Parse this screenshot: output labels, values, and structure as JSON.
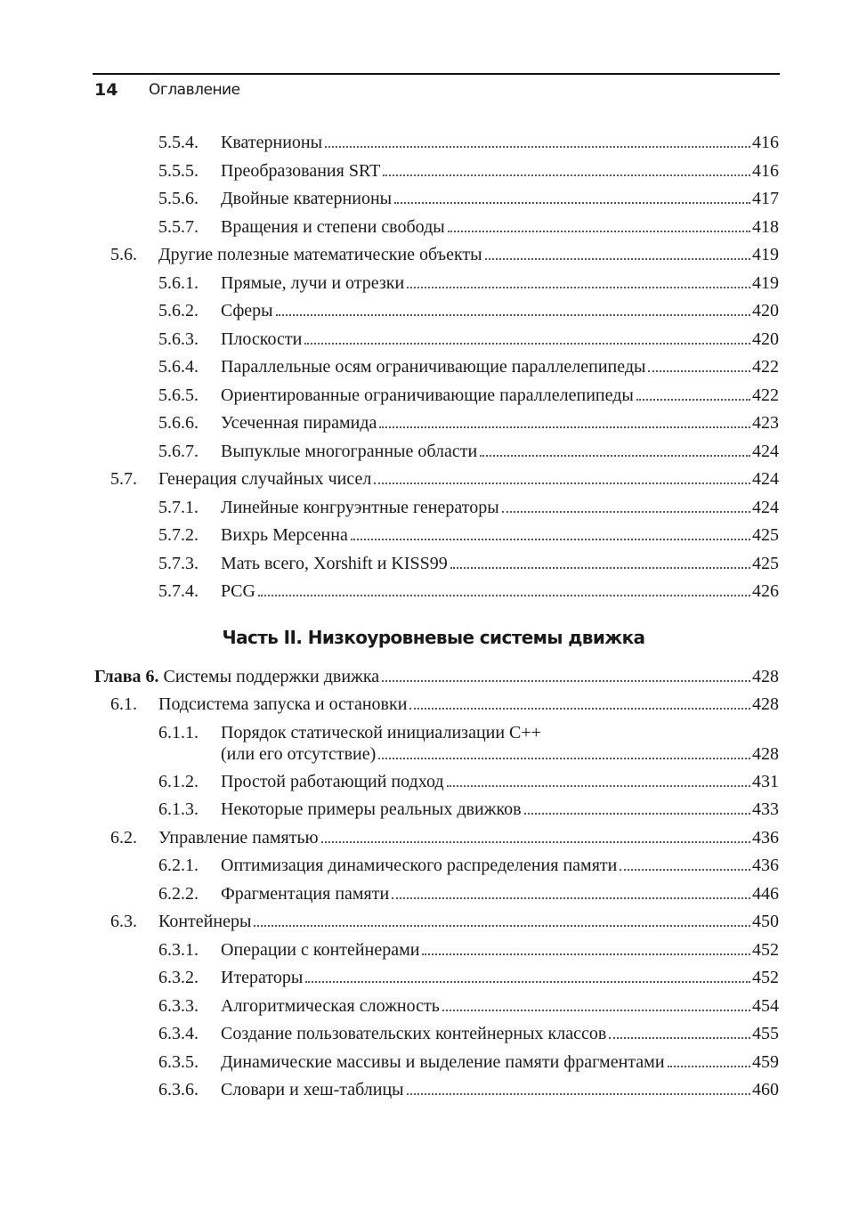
{
  "header": {
    "page_number": "14",
    "running_title": "Оглавление"
  },
  "entries_a": [
    {
      "level": 3,
      "num": "5.5.4.",
      "title": "Кватернионы",
      "page": "416"
    },
    {
      "level": 3,
      "num": "5.5.5.",
      "title": "Преобразования SRT",
      "page": "416"
    },
    {
      "level": 3,
      "num": "5.5.6.",
      "title": "Двойные кватернионы",
      "page": "417"
    },
    {
      "level": 3,
      "num": "5.5.7.",
      "title": "Вращения и степени свободы",
      "page": "418"
    },
    {
      "level": 2,
      "num": "5.6.",
      "title": "Другие полезные математические объекты",
      "page": "419"
    },
    {
      "level": 3,
      "num": "5.6.1.",
      "title": "Прямые, лучи и отрезки",
      "page": "419"
    },
    {
      "level": 3,
      "num": "5.6.2.",
      "title": "Сферы",
      "page": "420"
    },
    {
      "level": 3,
      "num": "5.6.3.",
      "title": "Плоскости",
      "page": "420"
    },
    {
      "level": 3,
      "num": "5.6.4.",
      "title": "Параллельные осям ограничивающие параллелепипеды",
      "page": "422"
    },
    {
      "level": 3,
      "num": "5.6.5.",
      "title": "Ориентированные ограничивающие параллелепипеды",
      "page": "422"
    },
    {
      "level": 3,
      "num": "5.6.6.",
      "title": "Усеченная пирамида",
      "page": "423"
    },
    {
      "level": 3,
      "num": "5.6.7.",
      "title": "Выпуклые многогранные области",
      "page": "424"
    },
    {
      "level": 2,
      "num": "5.7.",
      "title": "Генерация случайных чисел",
      "page": "424"
    },
    {
      "level": 3,
      "num": "5.7.1.",
      "title": "Линейные конгруэнтные генераторы",
      "page": "424"
    },
    {
      "level": 3,
      "num": "5.7.2.",
      "title": "Вихрь Мерсенна",
      "page": "425"
    },
    {
      "level": 3,
      "num": "5.7.3.",
      "title": "Мать всего, Xorshift и KISS99",
      "page": "425"
    },
    {
      "level": 3,
      "num": "5.7.4.",
      "title": "PCG",
      "page": "426"
    }
  ],
  "part_heading": "Часть II. Низкоуровневые системы движка",
  "entries_b": [
    {
      "level": 1,
      "num": "Глава 6.",
      "title": "Системы поддержки движка",
      "page": "428"
    },
    {
      "level": 2,
      "num": "6.1.",
      "title": "Подсистема запуска и остановки",
      "page": "428"
    },
    {
      "level": 3,
      "num": "6.1.1.",
      "title_line1": "Порядок статической инициализации C++",
      "title": "(или его отсутствие)",
      "page": "428"
    },
    {
      "level": 3,
      "num": "6.1.2.",
      "title": "Простой работающий подход",
      "page": "431"
    },
    {
      "level": 3,
      "num": "6.1.3.",
      "title": "Некоторые примеры реальных движков",
      "page": "433"
    },
    {
      "level": 2,
      "num": "6.2.",
      "title": "Управление памятью",
      "page": "436"
    },
    {
      "level": 3,
      "num": "6.2.1.",
      "title": "Оптимизация динамического распределения памяти",
      "page": "436"
    },
    {
      "level": 3,
      "num": "6.2.2.",
      "title": "Фрагментация памяти",
      "page": "446"
    },
    {
      "level": 2,
      "num": "6.3.",
      "title": "Контейнеры",
      "page": "450"
    },
    {
      "level": 3,
      "num": "6.3.1.",
      "title": "Операции с контейнерами",
      "page": "452"
    },
    {
      "level": 3,
      "num": "6.3.2.",
      "title": "Итераторы",
      "page": "452"
    },
    {
      "level": 3,
      "num": "6.3.3.",
      "title": "Алгоритмическая сложность",
      "page": "454"
    },
    {
      "level": 3,
      "num": "6.3.4.",
      "title": "Создание пользовательских контейнерных классов",
      "page": "455"
    },
    {
      "level": 3,
      "num": "6.3.5.",
      "title": "Динамические массивы и выделение памяти фрагментами",
      "page": "459"
    },
    {
      "level": 3,
      "num": "6.3.6.",
      "title": "Словари и хеш-таблицы",
      "page": "460"
    }
  ]
}
